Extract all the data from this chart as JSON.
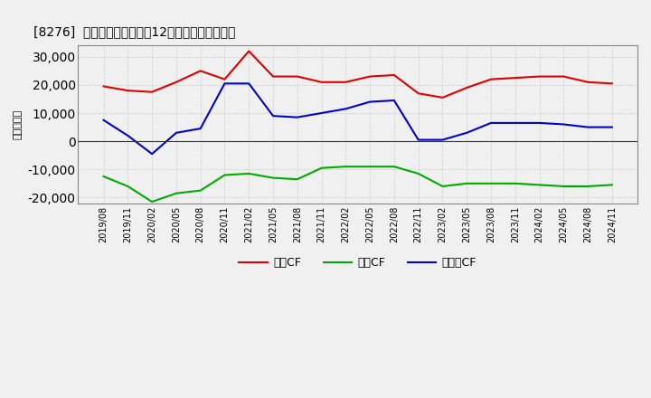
{
  "title": "[8276]  キャッシュフローの12か月移動合計の推移",
  "ylabel": "（百万円）",
  "background_color": "#f0f0f0",
  "plot_background": "#f0f0f0",
  "grid_color": "#aaaaaa",
  "x_labels": [
    "2019/08",
    "2019/11",
    "2020/02",
    "2020/05",
    "2020/08",
    "2020/11",
    "2021/02",
    "2021/05",
    "2021/08",
    "2021/11",
    "2022/02",
    "2022/05",
    "2022/08",
    "2022/11",
    "2023/02",
    "2023/05",
    "2023/08",
    "2023/11",
    "2024/02",
    "2024/05",
    "2024/08",
    "2024/11"
  ],
  "operating_cf": [
    19500,
    18000,
    17500,
    21000,
    25000,
    22000,
    32000,
    23000,
    23000,
    21000,
    21000,
    23000,
    23500,
    17000,
    15500,
    19000,
    22000,
    22500,
    23000,
    23000,
    21000,
    20500
  ],
  "investing_cf": [
    -12500,
    -16000,
    -21500,
    -18500,
    -17500,
    -12000,
    -11500,
    -13000,
    -13500,
    -9500,
    -9000,
    -9000,
    -9000,
    -11500,
    -16000,
    -15000,
    -15000,
    -15000,
    -15500,
    -16000,
    -16000,
    -15500
  ],
  "free_cf": [
    7500,
    2000,
    -4500,
    3000,
    4500,
    20500,
    20500,
    9000,
    8500,
    10000,
    11500,
    14000,
    14500,
    500,
    500,
    3000,
    6500,
    6500,
    6500,
    6000,
    5000,
    5000
  ],
  "operating_color": "#dd0000",
  "investing_color": "#00aa00",
  "free_color": "#0000cc",
  "line_width": 1.5,
  "ylim": [
    -22000,
    34000
  ],
  "yticks": [
    -20000,
    -10000,
    0,
    10000,
    20000,
    30000
  ],
  "legend_labels": [
    "営業CF",
    "投資CF",
    "フリーCF"
  ]
}
